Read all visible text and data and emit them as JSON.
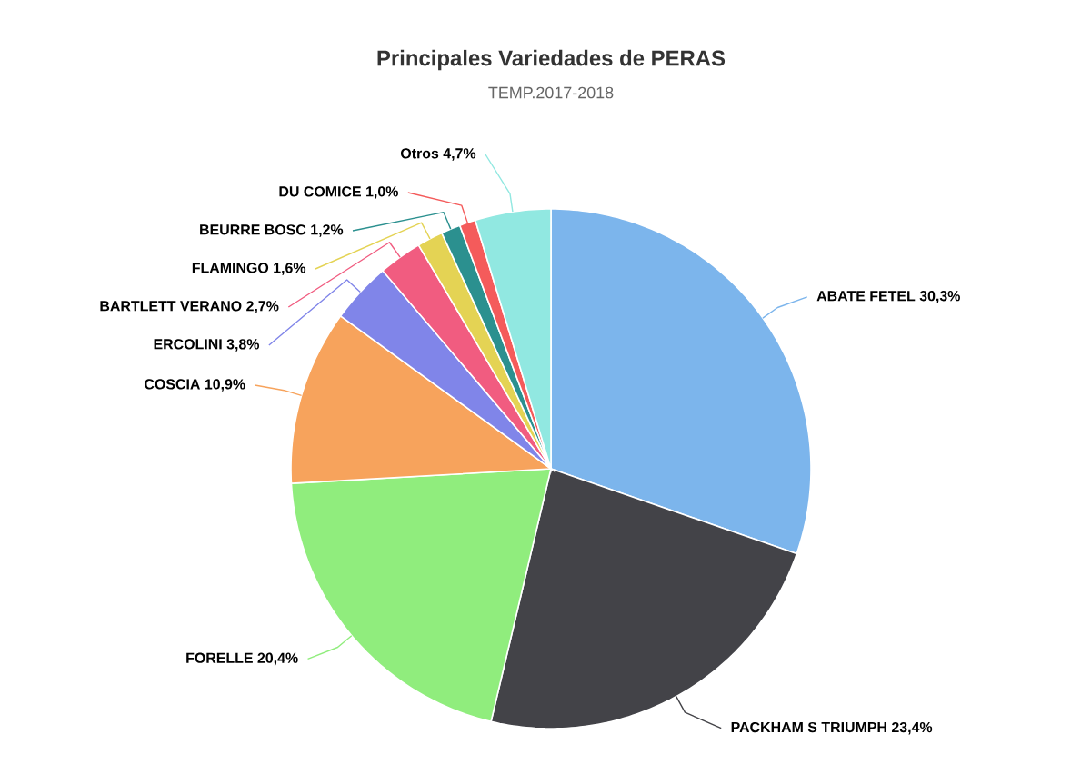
{
  "chart_data": {
    "type": "pie",
    "title": "Principales Variedades de PERAS",
    "subtitle": "TEMP.2017-2018",
    "categories": [
      "ABATE FETEL",
      "PACKHAM S TRIUMPH",
      "FORELLE",
      "COSCIA",
      "ERCOLINI",
      "BARTLETT VERANO",
      "FLAMINGO",
      "BEURRE BOSC",
      "DU COMICE",
      "Otros"
    ],
    "values": [
      30.3,
      23.4,
      20.4,
      10.9,
      3.8,
      2.7,
      1.6,
      1.2,
      1.0,
      4.7
    ],
    "value_labels": [
      "30,3%",
      "23,4%",
      "20,4%",
      "10,9%",
      "3,8%",
      "2,7%",
      "1,6%",
      "1,2%",
      "1,0%",
      "4,7%"
    ],
    "colors": [
      "#7cb5ec",
      "#434348",
      "#90ed7d",
      "#f7a35c",
      "#8085e9",
      "#f15c80",
      "#e4d354",
      "#2b908f",
      "#f45b5b",
      "#91e8e1"
    ]
  }
}
